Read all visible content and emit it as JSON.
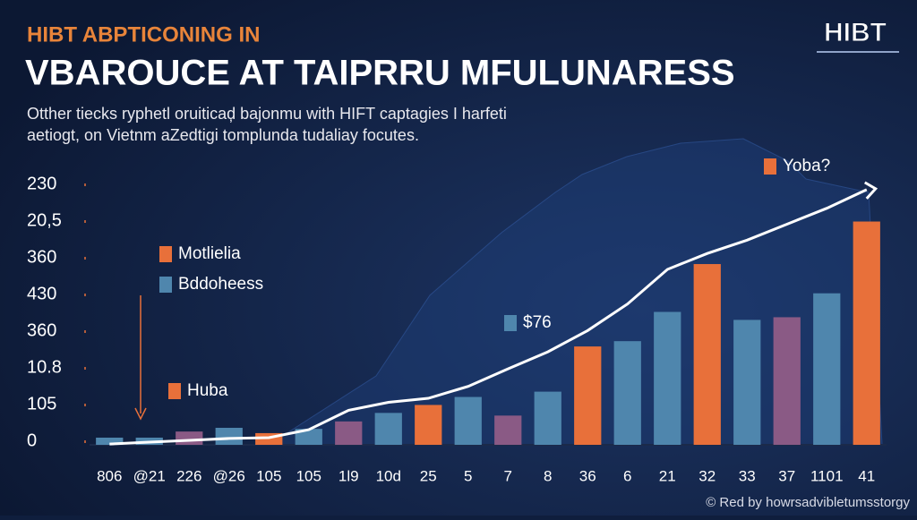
{
  "chart_data": {
    "type": "bar",
    "kicker": "HIBT ABPTICONING IN",
    "title": "VBAROUCE AT TAIPRRU MFULUNARESS",
    "subtitle": [
      "Otther tiecks ryphetl oruiticaḑ bajonmu with HIFT captagies I harfeti",
      "aetiogt, on Vietnm aZedtigi tomplunda tudaliay focutes."
    ],
    "logo": "HIBT",
    "footer": "© Red by howrsadvibletumsstorgy",
    "y_axis_labels": [
      "230",
      "20,5",
      "360",
      "430",
      "360",
      "10.8",
      "105",
      "0"
    ],
    "categories": [
      "806",
      "@21",
      "226",
      "@26",
      "105",
      "105",
      "1l9",
      "10d",
      "25",
      "5",
      "7",
      "8",
      "36",
      "6",
      "21",
      "32",
      "33",
      "37",
      "1101",
      "41"
    ],
    "values": [
      2.7,
      2.7,
      5,
      6.4,
      4.4,
      6,
      8.8,
      12,
      15,
      18,
      11,
      20,
      37,
      39,
      50,
      68,
      47,
      48,
      57,
      84
    ],
    "colors": [
      "#4f86ad",
      "#4f86ad",
      "#8a5a85",
      "#4f86ad",
      "#e8703a",
      "#4f86ad",
      "#8a5a85",
      "#4f86ad",
      "#e8703a",
      "#4f86ad",
      "#8a5a85",
      "#4f86ad",
      "#e8703a",
      "#4f86ad",
      "#4f86ad",
      "#e8703a",
      "#4f86ad",
      "#8a5a85",
      "#4f86ad",
      "#e8703a"
    ],
    "trend": {
      "color": "#ffffff",
      "values": [
        0.3,
        1,
        1.7,
        2.4,
        2.7,
        5.7,
        13,
        16,
        17.5,
        22,
        28.6,
        35,
        43,
        53,
        66,
        72,
        77,
        83,
        89,
        96
      ]
    },
    "ylim": [
      0,
      100
    ],
    "annotations": [
      {
        "text": "Motlielia",
        "color": "#e8703a"
      },
      {
        "text": "Bddoheess",
        "color": "#4f86ad"
      },
      {
        "text": "Huba",
        "color": "#e8703a"
      },
      {
        "text": "$76",
        "color": "#4f86ad"
      },
      {
        "text": "Yoba?",
        "color": "#e8703a"
      }
    ]
  }
}
